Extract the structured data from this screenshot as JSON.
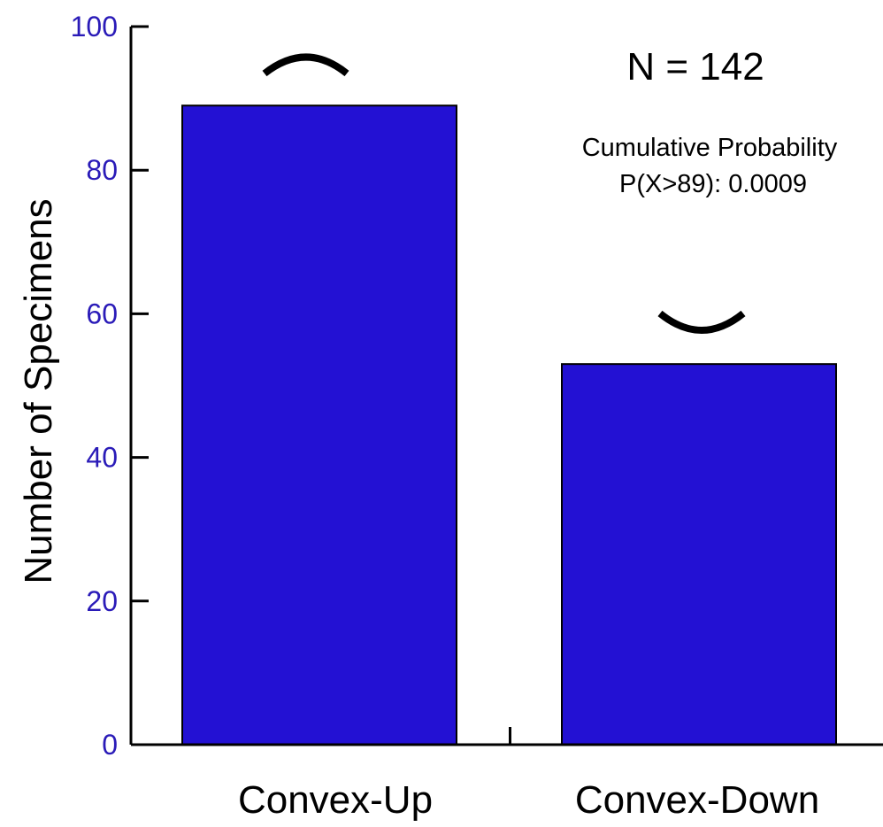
{
  "chart_data": {
    "type": "bar",
    "categories": [
      "Convex-Up",
      "Convex-Down"
    ],
    "values": [
      89,
      53
    ],
    "xlabel": "",
    "ylabel": "Number of Specimens",
    "ylim": [
      0,
      100
    ],
    "yticks": [
      0,
      20,
      40,
      60,
      80,
      100
    ],
    "grid": false,
    "bar_color": "#2311d3",
    "tick_label_color": "#2a1bb8",
    "axis_color": "#000000",
    "annotations": {
      "n_label": "N = 142",
      "prob_title": "Cumulative Probability",
      "prob_value": "P(X>89): 0.0009"
    },
    "bar_icons": [
      "convex-up-arc-icon",
      "convex-down-arc-icon"
    ]
  }
}
